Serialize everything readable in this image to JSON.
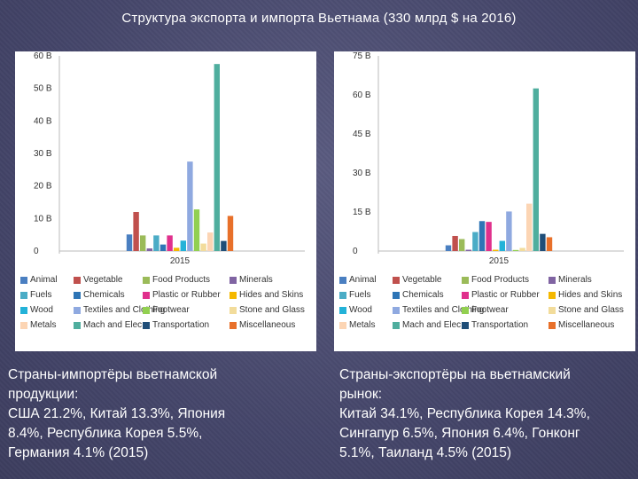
{
  "title": "Структура экспорта и импорта Вьетнама (330 млрд $ на 2016)",
  "colors": {
    "Animal": "#4a7fc1",
    "Vegetable": "#c0504d",
    "Food Products": "#9bbb59",
    "Minerals": "#8064a2",
    "Fuels": "#4bacc6",
    "Chemicals": "#2e75b6",
    "Plastic or Rubber": "#e0308c",
    "Hides and Skins": "#f5b800",
    "Wood": "#23b2d8",
    "Textiles and Clothing": "#8fa9e0",
    "Footwear": "#92d050",
    "Stone and Glass": "#f2dc9b",
    "Metals": "#fcd5b4",
    "Mach and Elec": "#4fae9e",
    "Transportation": "#1f4e78",
    "Miscellaneous": "#e8702a"
  },
  "legend_order": [
    "Animal",
    "Vegetable",
    "Food Products",
    "Minerals",
    "Fuels",
    "Chemicals",
    "Plastic or Rubber",
    "Hides and Skins",
    "Wood",
    "Textiles and Clothing",
    "Footwear",
    "Stone and Glass",
    "Metals",
    "Mach and Elec",
    "Transportation",
    "Miscellaneous"
  ],
  "legend_labels": [
    "Animal",
    "Vegetable",
    "Food Products",
    "Minerals",
    "Fuels",
    "Chemicals",
    "Plastic or Rubber",
    "Hides and Skins",
    "Wood",
    "Textiles and Clothing",
    "Footwear",
    "Stone and Glass",
    "Metals",
    "Mach and Elec",
    "Transportation",
    "Miscellaneous"
  ],
  "chart_data": [
    {
      "type": "bar",
      "title": "",
      "categories": [
        "2015"
      ],
      "yticks": [
        "0",
        "10 B",
        "20 B",
        "30 B",
        "40 B",
        "50 B",
        "60 B"
      ],
      "ylim": [
        0,
        60
      ],
      "grid": false,
      "legend": "bottom",
      "series": [
        {
          "name": "Animal",
          "values": [
            5.1
          ]
        },
        {
          "name": "Vegetable",
          "values": [
            12.0
          ]
        },
        {
          "name": "Food Products",
          "values": [
            4.8
          ]
        },
        {
          "name": "Minerals",
          "values": [
            0.8
          ]
        },
        {
          "name": "Fuels",
          "values": [
            4.8
          ]
        },
        {
          "name": "Chemicals",
          "values": [
            2.0
          ]
        },
        {
          "name": "Plastic or Rubber",
          "values": [
            4.8
          ]
        },
        {
          "name": "Hides and Skins",
          "values": [
            1.0
          ]
        },
        {
          "name": "Wood",
          "values": [
            3.2
          ]
        },
        {
          "name": "Textiles and Clothing",
          "values": [
            27.5
          ]
        },
        {
          "name": "Footwear",
          "values": [
            12.8
          ]
        },
        {
          "name": "Stone and Glass",
          "values": [
            2.3
          ]
        },
        {
          "name": "Metals",
          "values": [
            5.7
          ]
        },
        {
          "name": "Mach and Elec",
          "values": [
            57.5
          ]
        },
        {
          "name": "Transportation",
          "values": [
            3.1
          ]
        },
        {
          "name": "Miscellaneous",
          "values": [
            10.8
          ]
        }
      ]
    },
    {
      "type": "bar",
      "title": "",
      "categories": [
        "2015"
      ],
      "yticks": [
        "0",
        "15 B",
        "30 B",
        "45 B",
        "60 B",
        "75 B"
      ],
      "ylim": [
        0,
        75
      ],
      "grid": false,
      "legend": "bottom",
      "series": [
        {
          "name": "Animal",
          "values": [
            2.2
          ]
        },
        {
          "name": "Vegetable",
          "values": [
            5.8
          ]
        },
        {
          "name": "Food Products",
          "values": [
            4.6
          ]
        },
        {
          "name": "Minerals",
          "values": [
            0.5
          ]
        },
        {
          "name": "Fuels",
          "values": [
            7.3
          ]
        },
        {
          "name": "Chemicals",
          "values": [
            11.5
          ]
        },
        {
          "name": "Plastic or Rubber",
          "values": [
            11.2
          ]
        },
        {
          "name": "Hides and Skins",
          "values": [
            0.5
          ]
        },
        {
          "name": "Wood",
          "values": [
            3.9
          ]
        },
        {
          "name": "Textiles and Clothing",
          "values": [
            15.2
          ]
        },
        {
          "name": "Footwear",
          "values": [
            0.4
          ]
        },
        {
          "name": "Stone and Glass",
          "values": [
            1.2
          ]
        },
        {
          "name": "Metals",
          "values": [
            18.2
          ]
        },
        {
          "name": "Mach and Elec",
          "values": [
            62.5
          ]
        },
        {
          "name": "Transportation",
          "values": [
            6.6
          ]
        },
        {
          "name": "Miscellaneous",
          "values": [
            5.3
          ]
        }
      ]
    }
  ],
  "captions": {
    "import": [
      "Страны-импортёры вьетнамской",
      "продукции:",
      "США 21.2%, Китай 13.3%, Япония",
      "8.4%, Республика Корея 5.5%,",
      "Германия 4.1% (2015)"
    ],
    "export": [
      "Страны-экспортёры на вьетнамский",
      "рынок:",
      "Китай 34.1%, Республика Корея 14.3%,",
      "Сингапур 6.5%, Япония 6.4%, Гонконг",
      "5.1%, Таиланд 4.5% (2015)"
    ]
  }
}
